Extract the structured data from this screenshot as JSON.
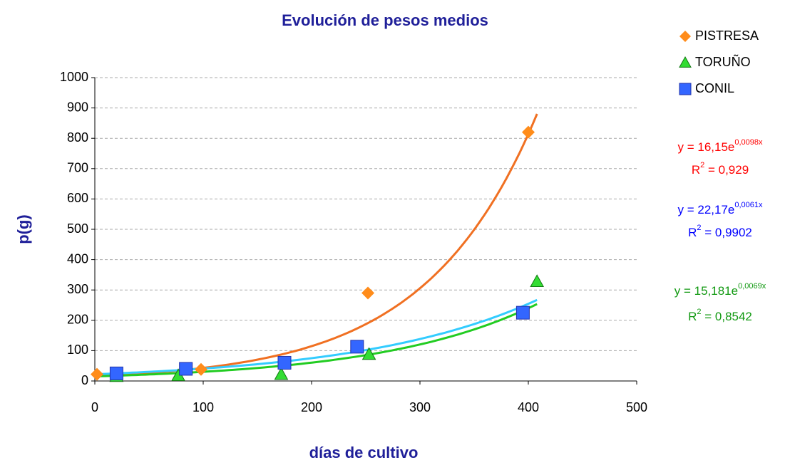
{
  "chart_data": {
    "type": "scatter",
    "title": "Evolución de pesos medios",
    "x_label": "días de cultivo",
    "y_label": "p(g)",
    "xlim": [
      0,
      500
    ],
    "xticks": [
      0,
      100,
      200,
      300,
      400,
      500
    ],
    "ylim": [
      0,
      1000
    ],
    "yticks": [
      0,
      100,
      200,
      300,
      400,
      500,
      600,
      700,
      800,
      900,
      1000
    ],
    "grid": true,
    "legend": "top-right",
    "series": [
      {
        "name": "PISTRESA",
        "marker": "diamond",
        "color": "#ff8c1a",
        "x": [
          2,
          98,
          252,
          400
        ],
        "values": [
          22,
          38,
          290,
          820
        ],
        "trend": {
          "a": 16.15,
          "b": 0.0098,
          "color": "#f07022",
          "label_color": "#ff0000",
          "equation": "y = 16,15e",
          "exponent": "0,0098x",
          "r": "R",
          "r_sup": "2",
          "r_rest": " = 0,929"
        }
      },
      {
        "name": "TORUÑO",
        "marker": "triangle",
        "color": "#33dd33",
        "x": [
          20,
          77,
          172,
          253,
          408
        ],
        "values": [
          15,
          18,
          22,
          88,
          328
        ],
        "trend": {
          "a": 15.181,
          "b": 0.0069,
          "color": "#22cc22",
          "label_color": "#119911",
          "equation": "y = 15,181e",
          "exponent": "0,0069x",
          "r": "R",
          "r_sup": "2",
          "r_rest": " = 0,8542"
        }
      },
      {
        "name": "CONIL",
        "marker": "square",
        "color": "#3366ff",
        "x": [
          20,
          84,
          175,
          242,
          395
        ],
        "values": [
          25,
          40,
          60,
          113,
          225
        ],
        "trend": {
          "a": 22.17,
          "b": 0.0061,
          "color": "#33ccff",
          "label_color": "#0000ff",
          "equation": "y = 22,17e",
          "exponent": "0,0061x",
          "r": "R",
          "r_sup": "2",
          "r_rest": " = 0,9902"
        }
      }
    ]
  }
}
